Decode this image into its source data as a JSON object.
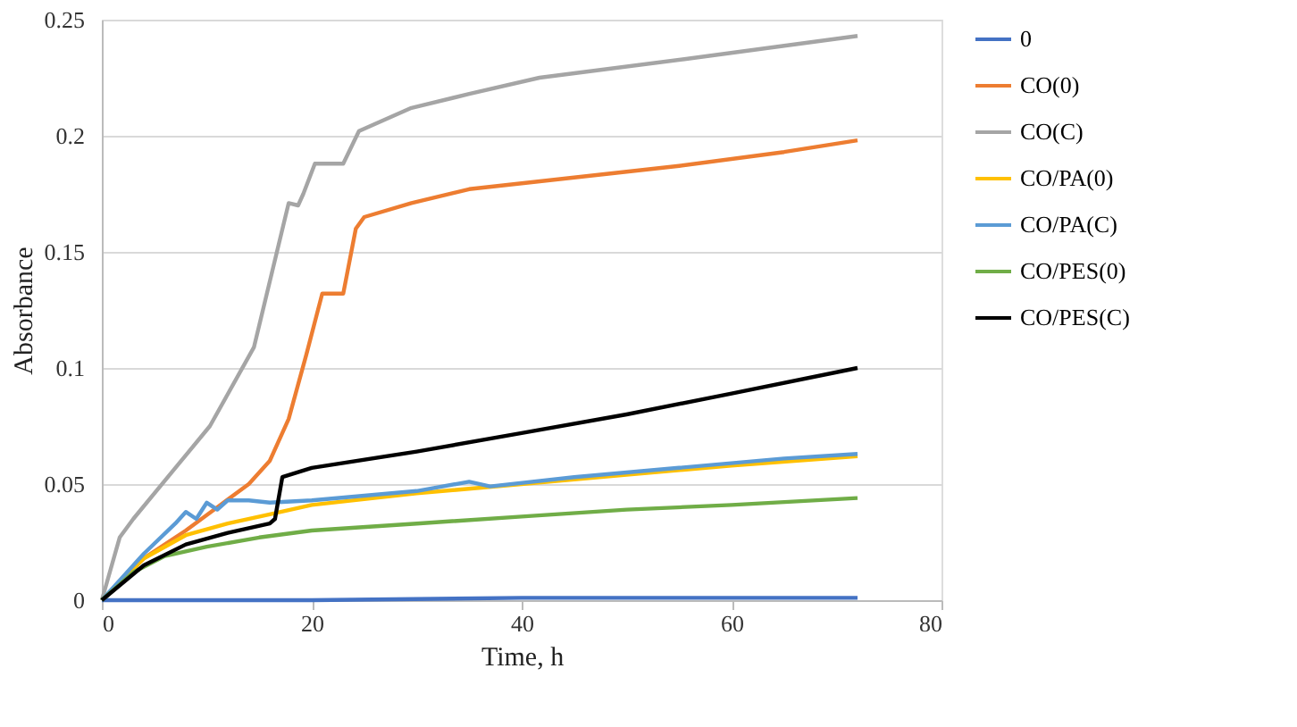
{
  "chart_data": {
    "type": "line",
    "xlabel": "Time, h",
    "ylabel": "Absorbance",
    "xlim": [
      0,
      80
    ],
    "xticks": [
      0,
      20,
      40,
      60,
      80
    ],
    "ylim": [
      0,
      0.25
    ],
    "yticks": [
      0,
      0.05,
      0.1,
      0.15,
      0.2,
      0.25
    ],
    "grid": "y",
    "legend": "right",
    "marker": "none",
    "line_style": "solid",
    "series": [
      {
        "name": "0",
        "color": "#4472c4",
        "x": [
          0,
          20,
          40,
          60,
          72
        ],
        "values": [
          0,
          0,
          0.001,
          0.001,
          0.001
        ]
      },
      {
        "name": "CO(0)",
        "color": "#ed7d31",
        "x": [
          0,
          4,
          8,
          11,
          14,
          16,
          17.8,
          19.5,
          21,
          23,
          24.2,
          25,
          29.5,
          35,
          45,
          55,
          65,
          72
        ],
        "values": [
          0,
          0.018,
          0.03,
          0.04,
          0.05,
          0.06,
          0.078,
          0.106,
          0.132,
          0.132,
          0.16,
          0.165,
          0.171,
          0.177,
          0.182,
          0.187,
          0.193,
          0.198
        ]
      },
      {
        "name": "CO(C)",
        "color": "#a5a5a5",
        "x": [
          0,
          1.7,
          3,
          7.2,
          10.3,
          14.5,
          17.8,
          18.7,
          19.2,
          20.3,
          23,
          24.5,
          29.5,
          35,
          41.7,
          55.5,
          72
        ],
        "values": [
          0,
          0.027,
          0.035,
          0.058,
          0.075,
          0.109,
          0.171,
          0.17,
          0.175,
          0.188,
          0.188,
          0.202,
          0.212,
          0.218,
          0.225,
          0.233,
          0.243
        ]
      },
      {
        "name": "CO/PA(0)",
        "color": "#ffc000",
        "x": [
          0,
          4,
          8,
          12,
          16,
          20,
          30,
          40,
          50,
          60,
          72
        ],
        "values": [
          0,
          0.018,
          0.028,
          0.033,
          0.037,
          0.041,
          0.046,
          0.05,
          0.054,
          0.058,
          0.062
        ]
      },
      {
        "name": "CO/PA(C)",
        "color": "#5b9bd5",
        "x": [
          0,
          4,
          7,
          8,
          9,
          10,
          11,
          12,
          14,
          16,
          20,
          30,
          35,
          37,
          45,
          55,
          65,
          72
        ],
        "values": [
          0,
          0.02,
          0.033,
          0.038,
          0.035,
          0.042,
          0.039,
          0.043,
          0.043,
          0.042,
          0.043,
          0.047,
          0.051,
          0.049,
          0.053,
          0.057,
          0.061,
          0.063
        ]
      },
      {
        "name": "CO/PES(0)",
        "color": "#70ad47",
        "x": [
          0,
          3,
          6,
          10,
          15,
          20,
          30,
          40,
          50,
          60,
          72
        ],
        "values": [
          0,
          0.012,
          0.019,
          0.023,
          0.027,
          0.03,
          0.033,
          0.036,
          0.039,
          0.041,
          0.044
        ]
      },
      {
        "name": "CO/PES(C)",
        "color": "#000000",
        "x": [
          0,
          4,
          8,
          12,
          16,
          16.5,
          17.2,
          20,
          30,
          40,
          50,
          60,
          72
        ],
        "values": [
          0,
          0.015,
          0.024,
          0.029,
          0.033,
          0.035,
          0.053,
          0.057,
          0.064,
          0.072,
          0.08,
          0.089,
          0.1
        ]
      }
    ]
  }
}
